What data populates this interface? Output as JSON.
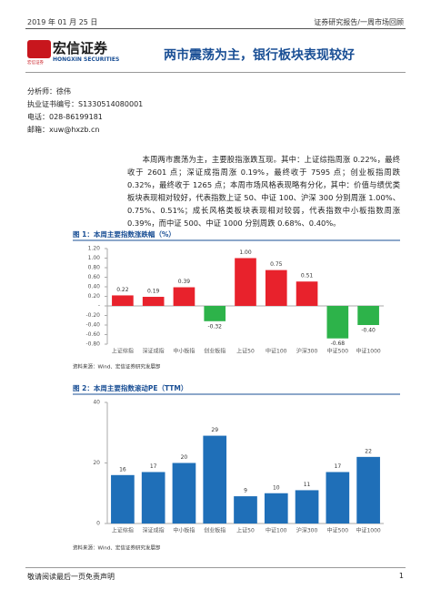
{
  "header": {
    "date": "2019 年 01 月 25 日",
    "category": "证券研究报告/一周市场回顾"
  },
  "logo": {
    "name": "宏信证券",
    "english": "HONGXIN SECURITIES",
    "small": "宏信证券"
  },
  "title": "两市震荡为主，银行板块表现较好",
  "analyst": [
    "分析师：徐伟",
    "执业证书编号：S1330514080001",
    "电话：028-86199181",
    "邮箱：xuw@hxzb.cn"
  ],
  "body": "本周两市震荡为主，主要股指涨跌互现。其中：上证综指周涨 0.22%，最终收于 2601 点；深证成指周涨 0.19%，最终收于 7595 点；创业板指周跌 0.32%，最终收于 1265 点；本周市场风格表现略有分化，其中：价值与绩优类板块表现相对较好，代表指数上证 50、中证 100、沪深 300 分别周涨 1.00%、0.75%、0.51%；成长风格类板块表现相对较弱，代表指数中小板指数周涨 0.39%，而中证 500、中证 1000 分别周跌 0.68%、0.40%。",
  "chart_data": [
    {
      "type": "bar",
      "title": "图 1：本周主要指数涨跌幅（%）",
      "categories": [
        "上证综指",
        "深证成指",
        "中小板指",
        "创业板指",
        "上证50",
        "中证100",
        "沪深300",
        "中证500",
        "中证1000"
      ],
      "values": [
        0.22,
        0.19,
        0.39,
        -0.32,
        1.0,
        0.75,
        0.51,
        -0.68,
        -0.4
      ],
      "value_labels": [
        "0.22",
        "0.19",
        "0.39",
        "-0.32",
        "1.00",
        "0.75",
        "0.51",
        "-0.68",
        "-0.40"
      ],
      "colors": [
        "#e8222c",
        "#e8222c",
        "#e8222c",
        "#2db34a",
        "#e8222c",
        "#e8222c",
        "#e8222c",
        "#2db34a",
        "#2db34a"
      ],
      "ylim": [
        -0.8,
        1.2
      ],
      "yticks": [
        {
          "value": -0.8,
          "label": "-0.80"
        },
        {
          "value": -0.6,
          "label": "-0.60"
        },
        {
          "value": -0.4,
          "label": "-0.40"
        },
        {
          "value": -0.2,
          "label": "-0.20"
        },
        {
          "value": 0,
          "label": "-"
        },
        {
          "value": 0.2,
          "label": "0.20"
        },
        {
          "value": 0.4,
          "label": "0.40"
        },
        {
          "value": 0.6,
          "label": "0.60"
        },
        {
          "value": 0.8,
          "label": "0.80"
        },
        {
          "value": 1.0,
          "label": "1.00"
        },
        {
          "value": 1.2,
          "label": "1.20"
        }
      ],
      "grid": false,
      "source": "资料来源：Wind、宏信证券研究发展部"
    },
    {
      "type": "bar",
      "title": "图 2：本周主要指数滚动PE（TTM）",
      "categories": [
        "上证综指",
        "深证成指",
        "中小板指",
        "创业板指",
        "上证50",
        "中证100",
        "沪深300",
        "中证500",
        "中证1000"
      ],
      "values": [
        16,
        17,
        20,
        29,
        9,
        10,
        11,
        17,
        22
      ],
      "color": "#1f6fb8",
      "ylim": [
        0,
        40
      ],
      "yticks": [
        0,
        20,
        40
      ],
      "grid": false,
      "source": "资料来源：Wind、宏信证券研究发展部"
    }
  ],
  "footer": {
    "disclaimer": "敬请阅读最后一页免责声明",
    "page": "1"
  }
}
